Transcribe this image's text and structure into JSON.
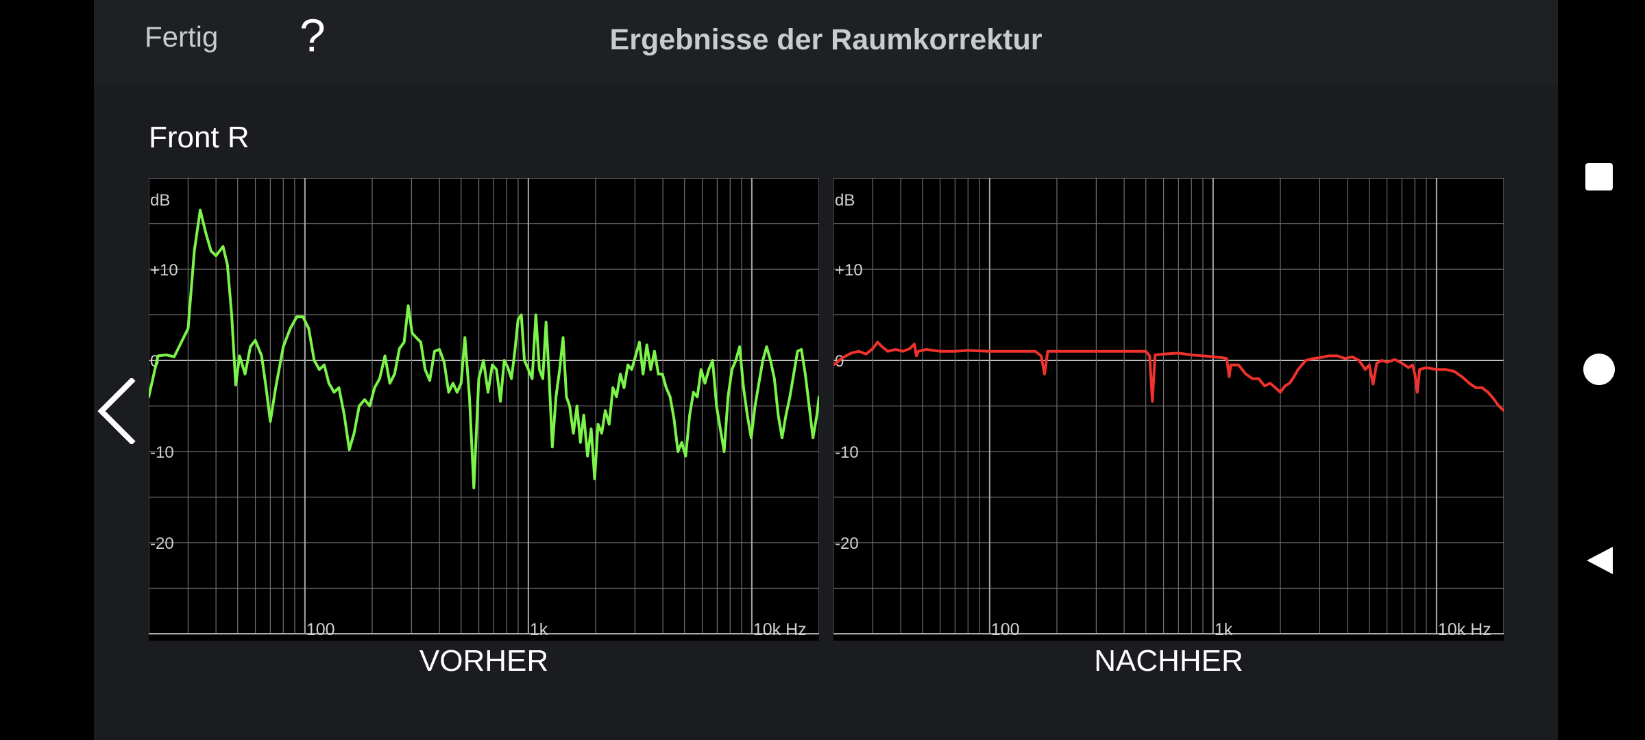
{
  "header": {
    "done_label": "Fertig",
    "help_label": "?",
    "title": "Ergebnisse der Raumkorrektur"
  },
  "speaker": "Front R",
  "colors": {
    "before_line": "#7cf44a",
    "after_line": "#f0322c",
    "grid": "#707070",
    "background": "#000000"
  },
  "icons": {
    "prev": "chevron-left-icon",
    "nav_recent": "square-icon",
    "nav_home": "circle-icon",
    "nav_back": "triangle-back-icon"
  },
  "chart_data": [
    {
      "type": "line",
      "xlabel": "VORHER",
      "ylabel": "dB",
      "x_scale": "log",
      "xlim": [
        20,
        20000
      ],
      "ylim": [
        -30,
        20
      ],
      "grid": true,
      "y_ticks": [
        {
          "v": 10,
          "label": "+10"
        },
        {
          "v": 0,
          "label": "0"
        },
        {
          "v": -10,
          "label": "-10"
        },
        {
          "v": -20,
          "label": "-20"
        }
      ],
      "x_ticks": [
        {
          "v": 100,
          "label": "100"
        },
        {
          "v": 1000,
          "label": "1k"
        },
        {
          "v": 10000,
          "label": "10k Hz"
        }
      ],
      "series": [
        {
          "points": [
            [
              20,
              -4
            ],
            [
              22,
              0.5
            ],
            [
              24,
              0.6
            ],
            [
              26,
              0.4
            ],
            [
              28,
              2
            ],
            [
              30,
              3.5
            ],
            [
              32,
              12
            ],
            [
              34,
              16.5
            ],
            [
              36,
              14
            ],
            [
              38,
              12
            ],
            [
              40,
              11.5
            ],
            [
              43,
              12.5
            ],
            [
              45,
              10.5
            ],
            [
              47,
              5
            ],
            [
              49,
              -2.7
            ],
            [
              51,
              0.5
            ],
            [
              54,
              -1.5
            ],
            [
              57,
              1.5
            ],
            [
              60,
              2.2
            ],
            [
              64,
              0.5
            ],
            [
              67,
              -3
            ],
            [
              70,
              -6.7
            ],
            [
              74,
              -3
            ],
            [
              80,
              1.5
            ],
            [
              86,
              3.5
            ],
            [
              92,
              4.8
            ],
            [
              98,
              4.8
            ],
            [
              104,
              3.5
            ],
            [
              110,
              0
            ],
            [
              116,
              -1
            ],
            [
              122,
              -0.5
            ],
            [
              128,
              -2.5
            ],
            [
              135,
              -3.5
            ],
            [
              142,
              -3
            ],
            [
              150,
              -6
            ],
            [
              158,
              -9.8
            ],
            [
              166,
              -8
            ],
            [
              175,
              -5
            ],
            [
              185,
              -4.3
            ],
            [
              195,
              -5
            ],
            [
              205,
              -3
            ],
            [
              216,
              -2
            ],
            [
              228,
              0.5
            ],
            [
              240,
              -2.5
            ],
            [
              252,
              -1.5
            ],
            [
              265,
              1.3
            ],
            [
              278,
              2
            ],
            [
              290,
              6
            ],
            [
              302,
              3
            ],
            [
              315,
              2.5
            ],
            [
              330,
              2
            ],
            [
              345,
              -1
            ],
            [
              362,
              -2.2
            ],
            [
              380,
              1
            ],
            [
              400,
              1.2
            ],
            [
              420,
              -0.2
            ],
            [
              440,
              -3.5
            ],
            [
              460,
              -2.5
            ],
            [
              480,
              -3.5
            ],
            [
              500,
              -2.5
            ],
            [
              520,
              2.5
            ],
            [
              545,
              -4
            ],
            [
              570,
              -14
            ],
            [
              600,
              -2
            ],
            [
              630,
              0
            ],
            [
              660,
              -3.5
            ],
            [
              690,
              -0.5
            ],
            [
              720,
              -1
            ],
            [
              750,
              -4.5
            ],
            [
              780,
              0
            ],
            [
              810,
              -0.8
            ],
            [
              840,
              -2
            ],
            [
              870,
              1
            ],
            [
              900,
              4.5
            ],
            [
              930,
              5
            ],
            [
              960,
              0
            ],
            [
              1000,
              -1
            ],
            [
              1040,
              -2
            ],
            [
              1080,
              5
            ],
            [
              1120,
              -1
            ],
            [
              1160,
              -2
            ],
            [
              1200,
              4.2
            ],
            [
              1240,
              -2
            ],
            [
              1280,
              -9.5
            ],
            [
              1330,
              -4
            ],
            [
              1380,
              -1
            ],
            [
              1430,
              2.5
            ],
            [
              1480,
              -4
            ],
            [
              1530,
              -5
            ],
            [
              1590,
              -8
            ],
            [
              1650,
              -5
            ],
            [
              1710,
              -9
            ],
            [
              1770,
              -6
            ],
            [
              1840,
              -10.5
            ],
            [
              1910,
              -7.5
            ],
            [
              1980,
              -13
            ],
            [
              2050,
              -7
            ],
            [
              2130,
              -8
            ],
            [
              2210,
              -5.5
            ],
            [
              2300,
              -7
            ],
            [
              2390,
              -3
            ],
            [
              2480,
              -4
            ],
            [
              2580,
              -1.5
            ],
            [
              2680,
              -3
            ],
            [
              2790,
              -0.5
            ],
            [
              2900,
              -1
            ],
            [
              3020,
              0.5
            ],
            [
              3140,
              2
            ],
            [
              3260,
              -1.5
            ],
            [
              3390,
              1.7
            ],
            [
              3530,
              -1
            ],
            [
              3670,
              1
            ],
            [
              3820,
              -1.5
            ],
            [
              3980,
              -1.5
            ],
            [
              4140,
              -3
            ],
            [
              4310,
              -4
            ],
            [
              4490,
              -6.5
            ],
            [
              4670,
              -10
            ],
            [
              4860,
              -9
            ],
            [
              5060,
              -10.5
            ],
            [
              5270,
              -6
            ],
            [
              5480,
              -3.5
            ],
            [
              5700,
              -4
            ],
            [
              5930,
              -1
            ],
            [
              6170,
              -2.5
            ],
            [
              6420,
              -1
            ],
            [
              6680,
              0
            ],
            [
              6950,
              -5
            ],
            [
              7230,
              -7.5
            ],
            [
              7520,
              -10
            ],
            [
              7830,
              -4
            ],
            [
              8150,
              -1
            ],
            [
              8480,
              0
            ],
            [
              8820,
              1.5
            ],
            [
              9180,
              -3
            ],
            [
              9550,
              -6
            ],
            [
              9940,
              -8.5
            ],
            [
              10340,
              -5
            ],
            [
              10760,
              -2.5
            ],
            [
              11200,
              0
            ],
            [
              11650,
              1.5
            ],
            [
              12120,
              0
            ],
            [
              12620,
              -2
            ],
            [
              13130,
              -6
            ],
            [
              13660,
              -8.5
            ],
            [
              14220,
              -6
            ],
            [
              14800,
              -4
            ],
            [
              15400,
              -1.5
            ],
            [
              16020,
              1
            ],
            [
              16670,
              1.2
            ],
            [
              17350,
              -1.5
            ],
            [
              18050,
              -5
            ],
            [
              18780,
              -8.5
            ],
            [
              19550,
              -6
            ],
            [
              20000,
              -4
            ],
            [
              21000,
              -5
            ],
            [
              22000,
              -6.5
            ]
          ]
        }
      ]
    },
    {
      "type": "line",
      "xlabel": "NACHHER",
      "ylabel": "dB",
      "x_scale": "log",
      "xlim": [
        20,
        20000
      ],
      "ylim": [
        -30,
        20
      ],
      "grid": true,
      "y_ticks": [
        {
          "v": 10,
          "label": "+10"
        },
        {
          "v": 0,
          "label": "0"
        },
        {
          "v": -10,
          "label": "-10"
        },
        {
          "v": -20,
          "label": "-20"
        }
      ],
      "x_ticks": [
        {
          "v": 100,
          "label": "100"
        },
        {
          "v": 1000,
          "label": "1k"
        },
        {
          "v": 10000,
          "label": "10k Hz"
        }
      ],
      "series": [
        {
          "points": [
            [
              20,
              -0.5
            ],
            [
              22,
              0.3
            ],
            [
              24,
              0.8
            ],
            [
              26,
              1
            ],
            [
              28,
              0.7
            ],
            [
              30,
              1.3
            ],
            [
              31.5,
              2
            ],
            [
              33,
              1.5
            ],
            [
              35,
              1
            ],
            [
              38,
              1.2
            ],
            [
              41,
              1
            ],
            [
              44,
              1.3
            ],
            [
              46,
              1.8
            ],
            [
              47,
              0.5
            ],
            [
              48,
              1
            ],
            [
              52,
              1.2
            ],
            [
              60,
              1
            ],
            [
              70,
              1
            ],
            [
              80,
              1.1
            ],
            [
              100,
              1
            ],
            [
              120,
              1
            ],
            [
              140,
              1
            ],
            [
              160,
              1
            ],
            [
              170,
              0.5
            ],
            [
              176,
              -1.5
            ],
            [
              182,
              1
            ],
            [
              200,
              1
            ],
            [
              250,
              1
            ],
            [
              300,
              1
            ],
            [
              350,
              1
            ],
            [
              400,
              1
            ],
            [
              450,
              1
            ],
            [
              500,
              1
            ],
            [
              520,
              0.5
            ],
            [
              535,
              -4.5
            ],
            [
              550,
              0.6
            ],
            [
              600,
              0.7
            ],
            [
              700,
              0.8
            ],
            [
              800,
              0.6
            ],
            [
              900,
              0.5
            ],
            [
              1000,
              0.4
            ],
            [
              1100,
              0.3
            ],
            [
              1150,
              0.2
            ],
            [
              1180,
              -1.8
            ],
            [
              1200,
              -0.5
            ],
            [
              1300,
              -0.5
            ],
            [
              1400,
              -1.5
            ],
            [
              1500,
              -2
            ],
            [
              1600,
              -2
            ],
            [
              1700,
              -2.8
            ],
            [
              1800,
              -2.5
            ],
            [
              1900,
              -3
            ],
            [
              2000,
              -3.5
            ],
            [
              2100,
              -2.8
            ],
            [
              2200,
              -2.5
            ],
            [
              2300,
              -1.8
            ],
            [
              2400,
              -1
            ],
            [
              2600,
              0
            ],
            [
              2800,
              0.2
            ],
            [
              3000,
              0.3
            ],
            [
              3300,
              0.5
            ],
            [
              3600,
              0.5
            ],
            [
              3900,
              0.2
            ],
            [
              4200,
              0.4
            ],
            [
              4500,
              0
            ],
            [
              4800,
              -1
            ],
            [
              5000,
              -0.5
            ],
            [
              5200,
              -2.6
            ],
            [
              5400,
              -0.3
            ],
            [
              5700,
              0
            ],
            [
              6000,
              -0.2
            ],
            [
              6500,
              0.1
            ],
            [
              7000,
              -0.3
            ],
            [
              7500,
              -0.8
            ],
            [
              7800,
              -0.5
            ],
            [
              8000,
              -1.5
            ],
            [
              8200,
              -3.5
            ],
            [
              8400,
              -1
            ],
            [
              9000,
              -0.8
            ],
            [
              10000,
              -1
            ],
            [
              11000,
              -1
            ],
            [
              12000,
              -1.2
            ],
            [
              13000,
              -1.8
            ],
            [
              14000,
              -2.5
            ],
            [
              15000,
              -3
            ],
            [
              16000,
              -3
            ],
            [
              17000,
              -3.5
            ],
            [
              18000,
              -4.2
            ],
            [
              19000,
              -5
            ],
            [
              20000,
              -5.5
            ],
            [
              22000,
              -6
            ]
          ]
        }
      ]
    }
  ]
}
